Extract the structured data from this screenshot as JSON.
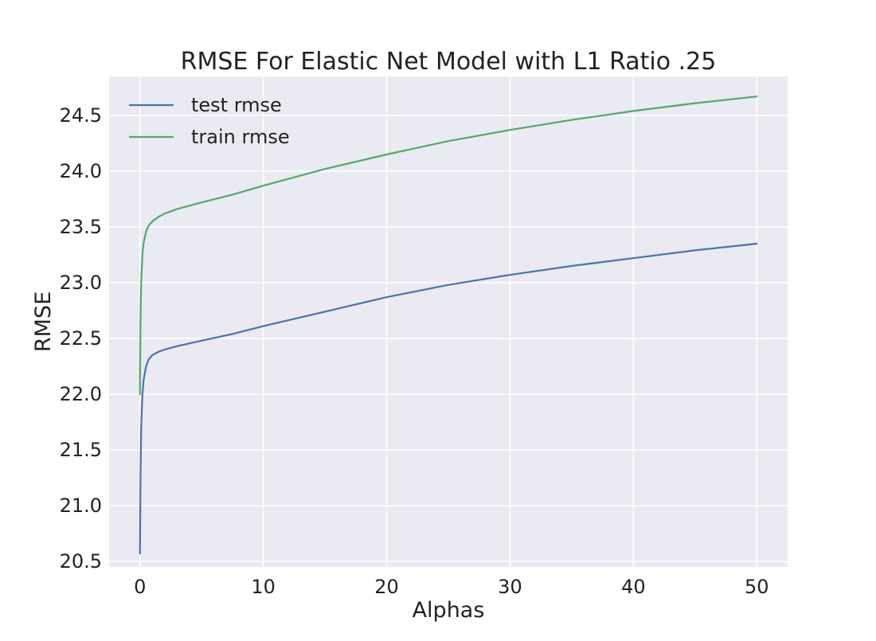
{
  "chart_data": {
    "type": "line",
    "title": "RMSE For Elastic Net Model with L1 Ratio .25",
    "xlabel": "Alphas",
    "ylabel": "RMSE",
    "xlim": [
      -2.5,
      52.5
    ],
    "ylim": [
      20.45,
      24.85
    ],
    "xticks": [
      0,
      10,
      20,
      30,
      40,
      50
    ],
    "xtick_labels": [
      "0",
      "10",
      "20",
      "30",
      "40",
      "50"
    ],
    "yticks": [
      20.5,
      21.0,
      21.5,
      22.0,
      22.5,
      23.0,
      23.5,
      24.0,
      24.5
    ],
    "ytick_labels": [
      "20.5",
      "21.0",
      "21.5",
      "22.0",
      "22.5",
      "23.0",
      "23.5",
      "24.0",
      "24.5"
    ],
    "grid": true,
    "legend_position": "top-left",
    "background_color": "#eaeaf2",
    "series": [
      {
        "name": "test rmse",
        "color": "#4c72b0",
        "x": [
          0,
          0.05,
          0.1,
          0.2,
          0.3,
          0.5,
          0.7,
          1.0,
          1.5,
          2.0,
          3.0,
          5.0,
          7.5,
          10,
          15,
          20,
          25,
          30,
          35,
          40,
          45,
          50
        ],
        "y": [
          20.57,
          21.3,
          21.7,
          22.0,
          22.13,
          22.25,
          22.31,
          22.35,
          22.38,
          22.4,
          22.43,
          22.48,
          22.54,
          22.61,
          22.74,
          22.87,
          22.98,
          23.07,
          23.15,
          23.22,
          23.29,
          23.35
        ]
      },
      {
        "name": "train rmse",
        "color": "#55a868",
        "x": [
          0,
          0.05,
          0.1,
          0.2,
          0.3,
          0.5,
          0.7,
          1.0,
          1.5,
          2.0,
          3.0,
          5.0,
          7.5,
          10,
          15,
          20,
          25,
          30,
          35,
          40,
          45,
          50
        ],
        "y": [
          22.0,
          22.7,
          23.0,
          23.25,
          23.36,
          23.46,
          23.51,
          23.55,
          23.59,
          23.62,
          23.66,
          23.72,
          23.79,
          23.87,
          24.02,
          24.15,
          24.27,
          24.37,
          24.46,
          24.54,
          24.61,
          24.67
        ]
      }
    ]
  }
}
